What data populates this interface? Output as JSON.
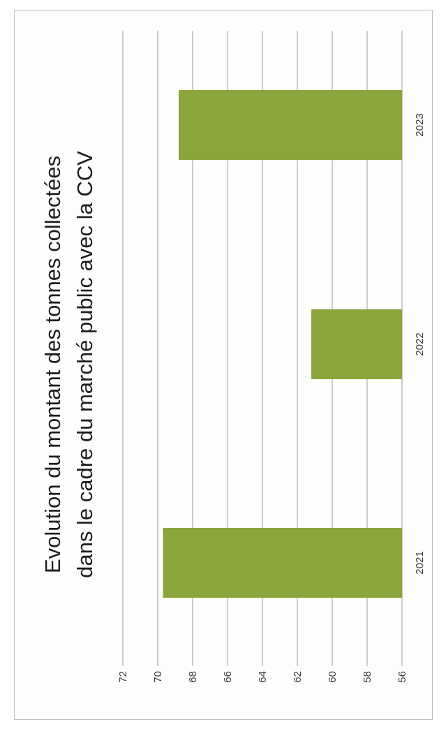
{
  "chart_data": {
    "type": "bar",
    "orientation": "horizontal",
    "title_lines": [
      "Evolution du montant des tonnes collectées",
      "dans le cadre du marché public avec la CCV"
    ],
    "categories": [
      "2021",
      "2022",
      "2023"
    ],
    "values": [
      69.7,
      61.2,
      68.8
    ],
    "xlim": [
      56,
      72
    ],
    "ticks": [
      "56",
      "58",
      "60",
      "62",
      "64",
      "66",
      "68",
      "70",
      "72"
    ],
    "grid": true,
    "bar_color": "#8aa63a"
  }
}
